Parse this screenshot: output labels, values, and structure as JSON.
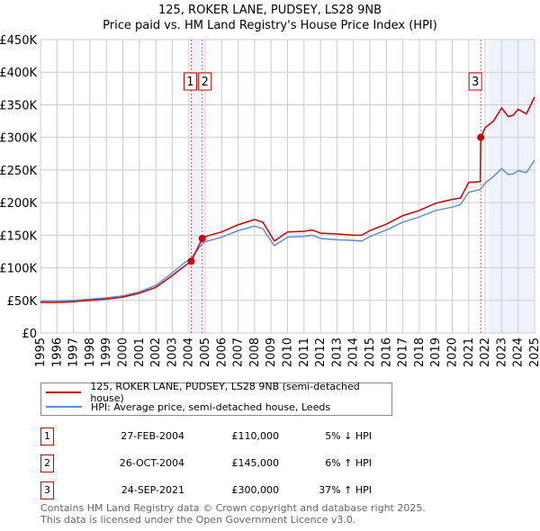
{
  "title_line1": "125, ROKER LANE, PUDSEY, LS28 9NB",
  "title_line2": "Price paid vs. HM Land Registry's House Price Index (HPI)",
  "chart_data": {
    "type": "line",
    "xlim": [
      1995,
      2025
    ],
    "ylim": [
      0,
      450000
    ],
    "x_ticks": [
      "1995",
      "1996",
      "1997",
      "1998",
      "1999",
      "2000",
      "2001",
      "2002",
      "2003",
      "2004",
      "2005",
      "2006",
      "2007",
      "2008",
      "2009",
      "2010",
      "2011",
      "2012",
      "2013",
      "2014",
      "2015",
      "2016",
      "2017",
      "2018",
      "2019",
      "2020",
      "2021",
      "2022",
      "2023",
      "2024",
      "2025"
    ],
    "y_ticks": [
      {
        "v": 0,
        "label": "£0"
      },
      {
        "v": 50000,
        "label": "£50K"
      },
      {
        "v": 100000,
        "label": "£100K"
      },
      {
        "v": 150000,
        "label": "£150K"
      },
      {
        "v": 200000,
        "label": "£200K"
      },
      {
        "v": 250000,
        "label": "£250K"
      },
      {
        "v": 300000,
        "label": "£300K"
      },
      {
        "v": 350000,
        "label": "£350K"
      },
      {
        "v": 400000,
        "label": "£400K"
      },
      {
        "v": 450000,
        "label": "£450K"
      }
    ],
    "grid": true,
    "shaded": [
      [
        2004.15,
        2004.82
      ],
      [
        2022.2,
        2025
      ]
    ],
    "series": [
      {
        "name": "125, ROKER LANE, PUDSEY, LS28 9NB (semi-detached house)",
        "color": "#cc0000",
        "x": [
          1995,
          1996,
          1997,
          1998,
          1999,
          2000,
          2001,
          2002,
          2003,
          2003.6,
          2004.15,
          2004.82,
          2005,
          2006,
          2007,
          2008,
          2008.5,
          2009.2,
          2010,
          2011,
          2011.5,
          2012,
          2013,
          2014,
          2014.5,
          2015,
          2016,
          2017,
          2018,
          2019,
          2020,
          2020.5,
          2021,
          2021.7,
          2021.73,
          2022,
          2022.5,
          2023,
          2023.4,
          2023.7,
          2024,
          2024.5,
          2025
        ],
        "y": [
          47000,
          47000,
          48000,
          50000,
          52000,
          55000,
          61000,
          70000,
          88000,
          100000,
          110000,
          145000,
          148000,
          155000,
          166000,
          174000,
          170000,
          141000,
          155000,
          156000,
          158000,
          153000,
          152000,
          150000,
          150000,
          157000,
          167000,
          180000,
          188000,
          199000,
          205000,
          207000,
          231000,
          232000,
          300000,
          315000,
          325000,
          345000,
          332000,
          334000,
          343000,
          336000,
          362000
        ]
      },
      {
        "name": "HPI: Average price, semi-detached house, Leeds",
        "color": "#6090d0",
        "x": [
          1995,
          1996,
          1997,
          1998,
          1999,
          2000,
          2001,
          2002,
          2003,
          2003.6,
          2004.15,
          2004.82,
          2005,
          2006,
          2007,
          2008,
          2008.5,
          2009.2,
          2010,
          2011,
          2011.5,
          2012,
          2013,
          2014,
          2014.5,
          2015,
          2016,
          2017,
          2018,
          2019,
          2020,
          2020.5,
          2021,
          2021.7,
          2022,
          2022.5,
          2023,
          2023.4,
          2023.7,
          2024,
          2024.5,
          2025
        ],
        "y": [
          49000,
          49000,
          50000,
          52000,
          54000,
          57000,
          63000,
          73000,
          92000,
          105000,
          115000,
          137000,
          140000,
          147000,
          157000,
          164000,
          160000,
          134000,
          147000,
          148000,
          150000,
          145000,
          143000,
          142000,
          141000,
          148000,
          158000,
          170000,
          178000,
          188000,
          193000,
          197000,
          216000,
          220000,
          230000,
          240000,
          252000,
          243000,
          244000,
          249000,
          246000,
          265000
        ]
      }
    ],
    "sales": [
      {
        "label": "1",
        "x": 2004.15,
        "y": 110000
      },
      {
        "label": "2",
        "x": 2004.82,
        "y": 145000
      },
      {
        "label": "3",
        "x": 2021.73,
        "y": 300000
      }
    ]
  },
  "legend": [
    "125, ROKER LANE, PUDSEY, LS28 9NB (semi-detached house)",
    "HPI: Average price, semi-detached house, Leeds"
  ],
  "transactions": [
    {
      "num": "1",
      "date": "27-FEB-2004",
      "price": "£110,000",
      "hpi": "5% ↓ HPI"
    },
    {
      "num": "2",
      "date": "26-OCT-2004",
      "price": "£145,000",
      "hpi": "6% ↑ HPI"
    },
    {
      "num": "3",
      "date": "24-SEP-2021",
      "price": "£300,000",
      "hpi": "37% ↑ HPI"
    }
  ],
  "footer1": "Contains HM Land Registry data © Crown copyright and database right 2025.",
  "footer2": "This data is licensed under the Open Government Licence v3.0."
}
